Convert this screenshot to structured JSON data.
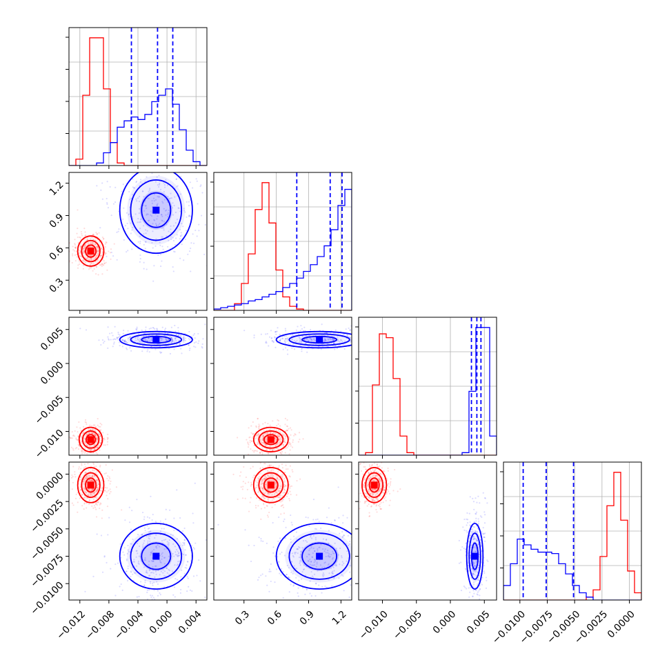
{
  "chart_data": {
    "type": "corner",
    "n_params": 4,
    "colors": {
      "red": "#ff0000",
      "blue": "#0000ff"
    },
    "grid": true,
    "axes": [
      {
        "range": [
          -0.0135,
          0.0055
        ],
        "ticks": [
          -0.012,
          -0.008,
          -0.004,
          0.0,
          0.004
        ],
        "tick_labels": [
          "−0.012",
          "−0.008",
          "−0.004",
          "0.000",
          "0.004"
        ]
      },
      {
        "range": [
          0.02,
          1.3
        ],
        "ticks": [
          0.3,
          0.6,
          0.9,
          1.2
        ],
        "tick_labels": [
          "0.3",
          "0.6",
          "0.9",
          "1.2"
        ]
      },
      {
        "range": [
          -0.0135,
          0.0068
        ],
        "ticks": [
          -0.01,
          -0.005,
          0.0,
          0.005
        ],
        "tick_labels": [
          "−0.010",
          "−0.005",
          "0.000",
          "0.005"
        ]
      },
      {
        "range": [
          -0.0115,
          0.0011
        ],
        "ticks": [
          -0.01,
          -0.0075,
          -0.005,
          -0.0025,
          0.0
        ],
        "tick_labels": [
          "−0.0100",
          "−0.0075",
          "−0.0050",
          "−0.0025",
          "0.0000"
        ]
      }
    ],
    "histograms": [
      {
        "param": 0,
        "bins": 20,
        "red": [
          0,
          0.05,
          0.55,
          1.0,
          1.0,
          0.6,
          0.18,
          0.02,
          0,
          0,
          0,
          0,
          0,
          0,
          0,
          0,
          0,
          0,
          0,
          0
        ],
        "blue": [
          0,
          0,
          0,
          0,
          0.02,
          0.1,
          0.18,
          0.3,
          0.35,
          0.38,
          0.36,
          0.4,
          0.5,
          0.55,
          0.6,
          0.48,
          0.28,
          0.12,
          0.03,
          0
        ],
        "quantile_lines": [
          -0.0049,
          -0.0013,
          0.0008
        ]
      },
      {
        "param": 1,
        "bins": 20,
        "red": [
          0,
          0,
          0,
          0.05,
          0.2,
          0.42,
          0.75,
          0.95,
          0.65,
          0.3,
          0.1,
          0.03,
          0.01,
          0,
          0,
          0,
          0,
          0,
          0,
          0
        ],
        "blue": [
          0.01,
          0.02,
          0.03,
          0.04,
          0.05,
          0.07,
          0.08,
          0.1,
          0.12,
          0.14,
          0.17,
          0.2,
          0.24,
          0.29,
          0.34,
          0.4,
          0.48,
          0.6,
          0.78,
          0.9
        ],
        "quantile_lines": [
          0.79,
          1.1,
          1.21
        ]
      },
      {
        "param": 2,
        "bins": 20,
        "red": [
          0,
          0.02,
          0.55,
          0.95,
          0.92,
          0.6,
          0.15,
          0.02,
          0,
          0,
          0,
          0,
          0,
          0,
          0,
          0,
          0,
          0,
          0,
          0
        ],
        "blue": [
          0,
          0,
          0,
          0,
          0,
          0,
          0,
          0,
          0,
          0,
          0,
          0,
          0,
          0,
          0,
          0.02,
          0.5,
          1.0,
          1.0,
          0.15
        ],
        "quantile_lines": [
          0.0031,
          0.0039,
          0.0045
        ]
      },
      {
        "param": 3,
        "bins": 20,
        "red": [
          0,
          0,
          0,
          0,
          0,
          0,
          0,
          0,
          0,
          0,
          0,
          0,
          0.02,
          0.07,
          0.3,
          0.65,
          0.88,
          0.55,
          0.2,
          0.05
        ],
        "blue": [
          0.1,
          0.25,
          0.42,
          0.38,
          0.35,
          0.33,
          0.33,
          0.32,
          0.25,
          0.18,
          0.1,
          0.05,
          0.02,
          0,
          0,
          0,
          0,
          0,
          0,
          0
        ],
        "quantile_lines": [
          -0.0097,
          -0.0076,
          -0.0051
        ]
      }
    ],
    "scatter_panels": [
      {
        "x": 0,
        "y": 1,
        "red": {
          "center": [
            -0.0105,
            0.57
          ],
          "spread": [
            0.0009,
            0.07
          ]
        },
        "blue": {
          "center": [
            -0.0015,
            0.95
          ],
          "spread": [
            0.0025,
            0.2
          ]
        }
      },
      {
        "x": 0,
        "y": 2,
        "red": {
          "center": [
            -0.0105,
            -0.0112
          ],
          "spread": [
            0.0008,
            0.0009
          ]
        },
        "blue": {
          "center": [
            -0.0015,
            0.0035
          ],
          "spread": [
            0.0025,
            0.0006
          ]
        }
      },
      {
        "x": 1,
        "y": 2,
        "red": {
          "center": [
            0.55,
            -0.0112
          ],
          "spread": [
            0.08,
            0.0009
          ]
        },
        "blue": {
          "center": [
            1.0,
            0.0035
          ],
          "spread": [
            0.2,
            0.0006
          ]
        }
      },
      {
        "x": 0,
        "y": 3,
        "red": {
          "center": [
            -0.0105,
            -0.001
          ],
          "spread": [
            0.0009,
            0.0008
          ]
        },
        "blue": {
          "center": [
            -0.0015,
            -0.0075
          ],
          "spread": [
            0.0025,
            0.0015
          ]
        }
      },
      {
        "x": 1,
        "y": 3,
        "red": {
          "center": [
            0.55,
            -0.001
          ],
          "spread": [
            0.08,
            0.0008
          ]
        },
        "blue": {
          "center": [
            1.0,
            -0.0075
          ],
          "spread": [
            0.2,
            0.0015
          ]
        }
      },
      {
        "x": 2,
        "y": 3,
        "red": {
          "center": [
            -0.0112,
            -0.001
          ],
          "spread": [
            0.0009,
            0.0008
          ]
        },
        "blue": {
          "center": [
            0.0036,
            -0.0075
          ],
          "spread": [
            0.0006,
            0.0015
          ]
        }
      }
    ]
  }
}
